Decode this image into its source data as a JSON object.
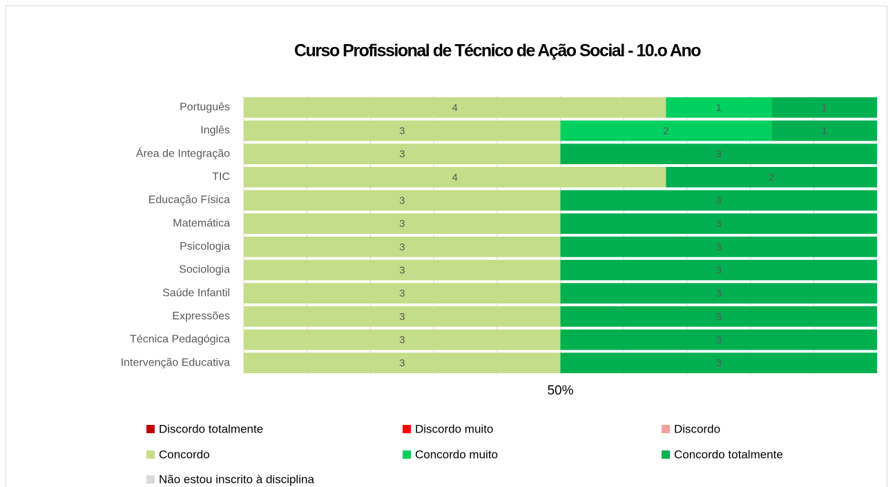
{
  "chart_data": {
    "type": "bar100h",
    "title": "Curso Profissional de Técnico de Ação Social - 10.o Ano",
    "categories": [
      "Português",
      "Inglês",
      "Área de Integração",
      "TIC",
      "Educação Física",
      "Matemática",
      "Psicologia",
      "Sociologia",
      "Saúde Infantil",
      "Expressões",
      "Técnica Pedagógica",
      "Intervenção Educativa"
    ],
    "series": [
      {
        "name": "Discordo totalmente",
        "color": "#c00000",
        "values": [
          null,
          null,
          null,
          null,
          null,
          null,
          null,
          null,
          null,
          null,
          null,
          null
        ]
      },
      {
        "name": "Discordo muito",
        "color": "#ff0000",
        "values": [
          null,
          null,
          null,
          null,
          null,
          null,
          null,
          null,
          null,
          null,
          null,
          null
        ]
      },
      {
        "name": "Discordo",
        "color": "#f4a09c",
        "values": [
          null,
          null,
          null,
          null,
          null,
          null,
          null,
          null,
          null,
          null,
          null,
          null
        ]
      },
      {
        "name": "Concordo",
        "color": "#c4dd88",
        "values": [
          4,
          3,
          3,
          4,
          3,
          3,
          3,
          3,
          3,
          3,
          3,
          3
        ]
      },
      {
        "name": "Concordo muito",
        "color": "#00d060",
        "values": [
          1,
          2,
          null,
          null,
          null,
          null,
          null,
          null,
          null,
          null,
          null,
          null
        ]
      },
      {
        "name": "Concordo totalmente",
        "color": "#00b050",
        "values": [
          1,
          1,
          3,
          2,
          3,
          3,
          3,
          3,
          3,
          3,
          3,
          3
        ]
      },
      {
        "name": "Não estou inscrito à disciplina",
        "color": "#d9d9d9",
        "values": [
          null,
          null,
          null,
          null,
          null,
          null,
          null,
          null,
          null,
          null,
          null,
          null
        ]
      }
    ],
    "xlim": [
      0,
      100
    ],
    "xticks": [
      {
        "value": 50,
        "label": "50%"
      }
    ],
    "grid_xticks": [
      0,
      10,
      20,
      30,
      40,
      50,
      60,
      70,
      80,
      90,
      100
    ],
    "grid": true,
    "legend": "bottom"
  }
}
